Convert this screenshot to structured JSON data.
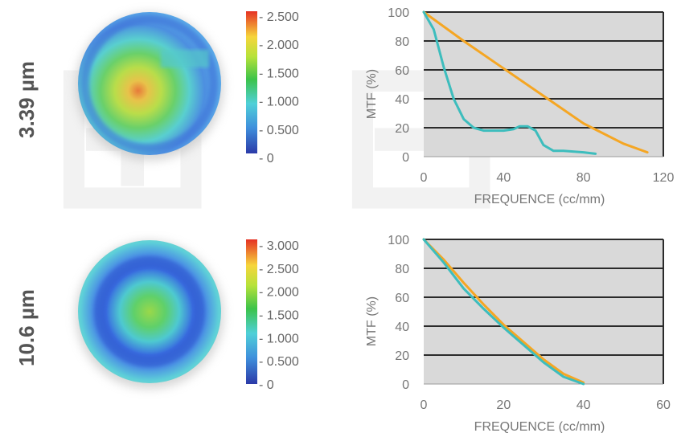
{
  "colors": {
    "orange": "#f5a623",
    "teal": "#3dbdbd",
    "plot_bg": "#d9d9d9",
    "grid": "#2b2b2b"
  },
  "panels": [
    {
      "wavelength_label": "3.39 µm",
      "colorbar_ticks": [
        "2.500",
        "2.000",
        "1.500",
        "1.000",
        "0.500",
        "0"
      ],
      "chart_data": {
        "type": "line",
        "xlabel": "FREQUENCE (cc/mm)",
        "ylabel": "MTF (%)",
        "xlim": [
          0,
          120
        ],
        "ylim": [
          0,
          100
        ],
        "xticks": [
          "0",
          "40",
          "80",
          "120"
        ],
        "yticks": [
          "0",
          "20",
          "40",
          "60",
          "80",
          "100"
        ],
        "grid": true,
        "series": [
          {
            "color": "#f5a623",
            "x": [
              0,
              20,
              40,
              60,
              80,
              100,
              112
            ],
            "y": [
              100,
              80,
              61,
              42,
              23,
              9,
              3
            ]
          },
          {
            "color": "#3dbdbd",
            "x": [
              0,
              5,
              10,
              15,
              20,
              25,
              30,
              35,
              40,
              45,
              48,
              52,
              56,
              60,
              65,
              70,
              80,
              86
            ],
            "y": [
              100,
              88,
              62,
              40,
              26,
              20,
              18,
              18,
              18,
              19,
              21,
              21,
              18,
              8,
              4,
              4,
              3,
              2
            ]
          }
        ]
      }
    },
    {
      "wavelength_label": "10.6 µm",
      "colorbar_ticks": [
        "3.000",
        "2.500",
        "2.000",
        "1.500",
        "1.000",
        "0.500",
        "0"
      ],
      "chart_data": {
        "type": "line",
        "xlabel": "FREQUENCE (cc/mm)",
        "ylabel": "MTF (%)",
        "xlim": [
          0,
          60
        ],
        "ylim": [
          0,
          100
        ],
        "xticks": [
          "0",
          "20",
          "40",
          "60"
        ],
        "yticks": [
          "0",
          "20",
          "40",
          "60",
          "80",
          "100"
        ],
        "grid": true,
        "series": [
          {
            "color": "#f5a623",
            "x": [
              0,
              5,
              10,
              15,
              20,
              25,
              30,
              35,
              40
            ],
            "y": [
              100,
              86,
              70,
              55,
              41,
              29,
              17,
              7,
              1
            ]
          },
          {
            "color": "#3dbdbd",
            "x": [
              0,
              5,
              10,
              15,
              20,
              25,
              30,
              35,
              40
            ],
            "y": [
              100,
              84,
              66,
              52,
              39,
              27,
              15,
              5,
              0
            ]
          }
        ]
      }
    }
  ]
}
